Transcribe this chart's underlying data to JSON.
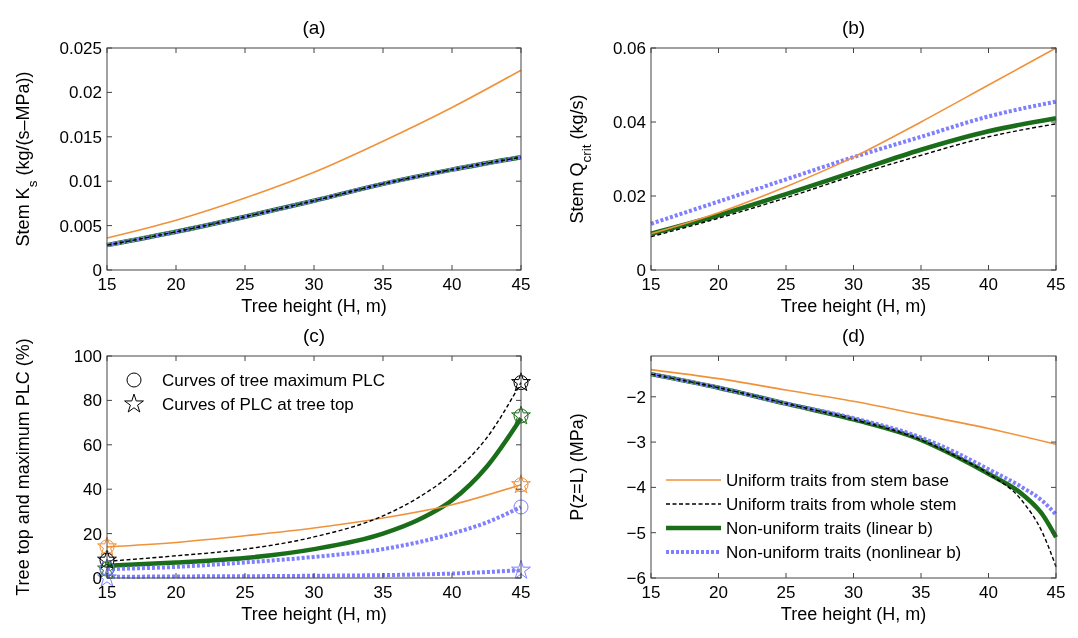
{
  "chart_data": [
    {
      "type": "line",
      "title": "(a)",
      "xlabel": "Tree height (H, m)",
      "ylabel": "Stem K$_{s}$ (kg/(s–MPa))",
      "xlim": [
        15,
        45
      ],
      "xticks": [
        15,
        20,
        25,
        30,
        35,
        40,
        45
      ],
      "ylim": [
        0,
        0.025
      ],
      "yticks": [
        0,
        0.005,
        0.01,
        0.015,
        0.02,
        0.025
      ],
      "grid": false,
      "legend": false,
      "series": [
        {
          "color": "#f0923a",
          "line_style": "solid",
          "x": [
            15,
            20,
            25,
            30,
            35,
            40,
            45
          ],
          "values": [
            0.0036,
            0.0056,
            0.0081,
            0.011,
            0.0145,
            0.0183,
            0.0225
          ]
        },
        {
          "color": "#000000",
          "line_style": "dashed",
          "x": [
            15,
            20,
            25,
            30,
            35,
            40,
            45
          ],
          "values": [
            0.0028,
            0.0043,
            0.006,
            0.0078,
            0.0097,
            0.0113,
            0.0127
          ]
        },
        {
          "color": "#1a6e1a",
          "line_style": "solid",
          "x": [
            15,
            20,
            25,
            30,
            35,
            40,
            45
          ],
          "values": [
            0.0028,
            0.0043,
            0.006,
            0.0078,
            0.0097,
            0.0113,
            0.0127
          ]
        },
        {
          "color": "#7f7fff",
          "line_style": "dotted",
          "x": [
            15,
            20,
            25,
            30,
            35,
            40,
            45
          ],
          "values": [
            0.0028,
            0.0043,
            0.006,
            0.0078,
            0.0097,
            0.0113,
            0.0127
          ]
        }
      ]
    },
    {
      "type": "line",
      "title": "(b)",
      "xlabel": "Tree height (H, m)",
      "ylabel": "Stem Q$_{crit}$ (kg/s)",
      "xlim": [
        15,
        45
      ],
      "xticks": [
        15,
        20,
        25,
        30,
        35,
        40,
        45
      ],
      "ylim": [
        0,
        0.06
      ],
      "yticks": [
        0,
        0.02,
        0.04,
        0.06
      ],
      "grid": false,
      "legend": false,
      "series": [
        {
          "color": "#f0923a",
          "line_style": "solid",
          "x": [
            15,
            20,
            25,
            30,
            35,
            40,
            45
          ],
          "values": [
            0.0098,
            0.0155,
            0.0225,
            0.0305,
            0.04,
            0.05,
            0.06
          ]
        },
        {
          "color": "#000000",
          "line_style": "dashed",
          "x": [
            15,
            20,
            25,
            30,
            35,
            40,
            45
          ],
          "values": [
            0.009,
            0.014,
            0.0195,
            0.0255,
            0.031,
            0.036,
            0.0395
          ]
        },
        {
          "color": "#1a6e1a",
          "line_style": "solid",
          "x": [
            15,
            20,
            25,
            30,
            35,
            40,
            45
          ],
          "values": [
            0.0098,
            0.0148,
            0.0205,
            0.0265,
            0.0325,
            0.0375,
            0.041
          ]
        },
        {
          "color": "#7f7fff",
          "line_style": "dotted",
          "x": [
            15,
            20,
            25,
            30,
            35,
            40,
            45
          ],
          "values": [
            0.0125,
            0.0185,
            0.0245,
            0.0305,
            0.036,
            0.0415,
            0.0455
          ]
        }
      ]
    },
    {
      "type": "line",
      "title": "(c)",
      "xlabel": "Tree height (H, m)",
      "ylabel": "Tree top and maximum PLC (%)",
      "xlim": [
        15,
        45
      ],
      "xticks": [
        15,
        20,
        25,
        30,
        35,
        40,
        45
      ],
      "ylim": [
        0,
        100
      ],
      "yticks": [
        0,
        20,
        40,
        60,
        80,
        100
      ],
      "grid": false,
      "legend": "top left",
      "series": [
        {
          "color": "#f0923a",
          "line_style": "solid",
          "x": [
            15,
            20,
            25,
            30,
            35,
            40,
            45
          ],
          "values": [
            14,
            16,
            19,
            22.5,
            27,
            33,
            42
          ]
        },
        {
          "color": "#000000",
          "line_style": "dashed",
          "x": [
            15,
            20,
            25,
            30,
            35,
            37.5,
            40,
            42.5,
            45
          ],
          "values": [
            7.5,
            10,
            13,
            18.5,
            28,
            36,
            47,
            63,
            88
          ]
        },
        {
          "color": "#1a6e1a",
          "line_style": "solid",
          "x": [
            15,
            20,
            25,
            30,
            35,
            37.5,
            40,
            42.5,
            45
          ],
          "values": [
            5.5,
            7,
            9,
            13,
            20,
            26,
            35,
            50,
            72
          ]
        },
        {
          "color": "#7f7fff",
          "line_style": "dotted",
          "x": [
            15,
            20,
            25,
            30,
            35,
            40,
            42.5,
            45
          ],
          "values": [
            4,
            5,
            7,
            9.5,
            13,
            20,
            25,
            32
          ]
        },
        {
          "color": "#7f7fff",
          "line_style": "dotted",
          "x": [
            15,
            20,
            25,
            30,
            35,
            40,
            45
          ],
          "values": [
            0.5,
            0.7,
            0.8,
            1,
            1.3,
            2,
            3.5
          ]
        },
        {
          "type": "scatter",
          "marker": "circle",
          "color": "#f0923a",
          "x": [
            15,
            45
          ],
          "values": [
            14,
            42
          ]
        },
        {
          "type": "scatter",
          "marker": "star",
          "color": "#f0923a",
          "x": [
            15,
            45
          ],
          "values": [
            14,
            42
          ]
        },
        {
          "type": "scatter",
          "marker": "circle",
          "color": "#000000",
          "name": "Curves of tree maximum PLC",
          "x": [
            15,
            45
          ],
          "values": [
            8,
            88
          ]
        },
        {
          "type": "scatter",
          "marker": "star",
          "color": "#000000",
          "name": "Curves of PLC at tree top",
          "x": [
            15,
            45
          ],
          "values": [
            8,
            88
          ]
        },
        {
          "type": "scatter",
          "marker": "circle",
          "color": "#1a6e1a",
          "x": [
            15,
            45
          ],
          "values": [
            4,
            73
          ]
        },
        {
          "type": "scatter",
          "marker": "star",
          "color": "#1a6e1a",
          "x": [
            15,
            45
          ],
          "values": [
            4,
            73
          ]
        },
        {
          "type": "scatter",
          "marker": "circle",
          "color": "#7f7fff",
          "x": [
            15,
            45
          ],
          "values": [
            4.5,
            32
          ]
        },
        {
          "type": "scatter",
          "marker": "star",
          "color": "#7f7fff",
          "x": [
            15,
            45
          ],
          "values": [
            0,
            3.5
          ]
        }
      ]
    },
    {
      "type": "line",
      "title": "(d)",
      "xlabel": "Tree height (H, m)",
      "ylabel": "P(z=L) (MPa)",
      "xlim": [
        15,
        45
      ],
      "xticks": [
        15,
        20,
        25,
        30,
        35,
        40,
        45
      ],
      "ylim": [
        -6,
        -1.1
      ],
      "yticks": [
        -6,
        -5,
        -4,
        -3,
        -2
      ],
      "grid": false,
      "legend": "bottom left",
      "series": [
        {
          "name": "Uniform traits from stem base",
          "color": "#f0923a",
          "line_style": "solid",
          "x": [
            15,
            20,
            25,
            30,
            35,
            40,
            45
          ],
          "values": [
            -1.4,
            -1.6,
            -1.85,
            -2.1,
            -2.4,
            -2.7,
            -3.05
          ]
        },
        {
          "name": "Uniform traits from whole stem",
          "color": "#000000",
          "line_style": "dashed",
          "x": [
            15,
            20,
            25,
            30,
            35,
            37.5,
            40,
            42.5,
            44,
            45
          ],
          "values": [
            -1.5,
            -1.8,
            -2.15,
            -2.5,
            -2.95,
            -3.3,
            -3.7,
            -4.3,
            -5,
            -5.75
          ]
        },
        {
          "name": "Non-uniform traits (linear b)",
          "color": "#1a6e1a",
          "line_style": "solid",
          "x": [
            15,
            20,
            25,
            30,
            35,
            37.5,
            40,
            42.5,
            44,
            45
          ],
          "values": [
            -1.5,
            -1.8,
            -2.15,
            -2.5,
            -2.95,
            -3.3,
            -3.7,
            -4.15,
            -4.6,
            -5.1
          ]
        },
        {
          "name": "Non-uniform traits (nonlinear b)",
          "color": "#7f7fff",
          "line_style": "dotted",
          "x": [
            15,
            20,
            25,
            30,
            35,
            37.5,
            40,
            42.5,
            44,
            45
          ],
          "values": [
            -1.5,
            -1.8,
            -2.15,
            -2.47,
            -2.9,
            -3.22,
            -3.6,
            -4,
            -4.3,
            -4.6
          ]
        }
      ]
    }
  ]
}
